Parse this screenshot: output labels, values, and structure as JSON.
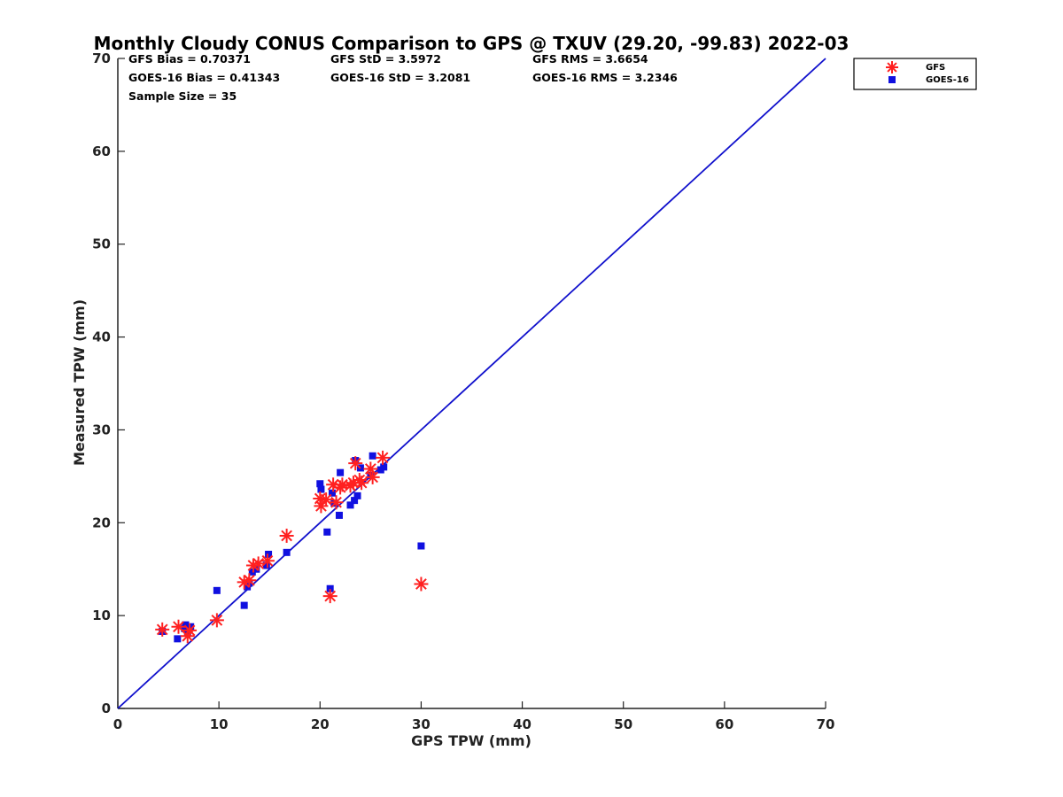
{
  "chart_data": {
    "type": "scatter",
    "title": "Monthly Cloudy CONUS Comparison to GPS @ TXUV (29.20, -99.83) 2022-03",
    "xlabel": "GPS TPW (mm)",
    "ylabel": "Measured TPW (mm)",
    "xlim": [
      0,
      70
    ],
    "ylim": [
      0,
      70
    ],
    "xticks": [
      "0",
      "10",
      "20",
      "30",
      "40",
      "50",
      "60",
      "70"
    ],
    "yticks": [
      "0",
      "10",
      "20",
      "30",
      "40",
      "50",
      "60",
      "70"
    ],
    "grid": false,
    "legend_position": "top-right outside",
    "stats": {
      "gfs_bias": "GFS Bias = 0.70371",
      "gfs_std": "GFS StD = 3.5972",
      "gfs_rms": "GFS RMS = 3.6654",
      "goes_bias": "GOES-16 Bias = 0.41343",
      "goes_std": "GOES-16 StD = 3.2081",
      "goes_rms": "GOES-16 RMS = 3.2346",
      "sample_size": "Sample Size = 35"
    },
    "reference_line": {
      "x": [
        0,
        70
      ],
      "y": [
        0,
        70
      ],
      "color": "#1010cc"
    },
    "series": [
      {
        "name": "GFS",
        "marker": "asterisk",
        "color": "#ff2020",
        "points": [
          [
            4.4,
            8.5
          ],
          [
            6.0,
            8.8
          ],
          [
            6.9,
            7.8
          ],
          [
            7.1,
            8.4
          ],
          [
            9.8,
            9.5
          ],
          [
            12.5,
            13.6
          ],
          [
            13.0,
            13.8
          ],
          [
            13.4,
            15.4
          ],
          [
            13.9,
            15.6
          ],
          [
            14.8,
            15.9
          ],
          [
            16.7,
            18.6
          ],
          [
            20.0,
            22.6
          ],
          [
            20.1,
            21.8
          ],
          [
            20.6,
            22.5
          ],
          [
            21.0,
            12.1
          ],
          [
            21.3,
            24.1
          ],
          [
            21.6,
            22.2
          ],
          [
            22.0,
            23.8
          ],
          [
            22.2,
            24.1
          ],
          [
            23.0,
            24.0
          ],
          [
            23.3,
            24.3
          ],
          [
            23.5,
            26.4
          ],
          [
            23.9,
            24.6
          ],
          [
            24.1,
            24.3
          ],
          [
            25.0,
            25.8
          ],
          [
            25.2,
            24.9
          ],
          [
            26.2,
            27.0
          ],
          [
            30.0,
            13.4
          ]
        ]
      },
      {
        "name": "GOES-16",
        "marker": "square",
        "color": "#1010e0",
        "points": [
          [
            4.4,
            8.3
          ],
          [
            5.9,
            7.5
          ],
          [
            6.6,
            8.6
          ],
          [
            6.7,
            9.0
          ],
          [
            6.9,
            8.2
          ],
          [
            7.2,
            8.8
          ],
          [
            9.8,
            12.7
          ],
          [
            12.5,
            11.1
          ],
          [
            12.8,
            13.1
          ],
          [
            13.0,
            13.5
          ],
          [
            13.3,
            14.7
          ],
          [
            13.7,
            15.0
          ],
          [
            14.7,
            15.4
          ],
          [
            14.9,
            16.6
          ],
          [
            16.7,
            16.8
          ],
          [
            20.0,
            24.2
          ],
          [
            20.1,
            23.6
          ],
          [
            20.7,
            19.0
          ],
          [
            21.0,
            12.9
          ],
          [
            21.2,
            23.2
          ],
          [
            21.4,
            22.1
          ],
          [
            21.9,
            20.8
          ],
          [
            22.0,
            25.4
          ],
          [
            23.0,
            21.9
          ],
          [
            23.4,
            22.4
          ],
          [
            23.5,
            26.7
          ],
          [
            23.7,
            22.9
          ],
          [
            24.0,
            25.9
          ],
          [
            25.0,
            25.1
          ],
          [
            25.2,
            27.2
          ],
          [
            26.0,
            25.7
          ],
          [
            26.3,
            26.0
          ],
          [
            30.0,
            17.5
          ]
        ]
      }
    ]
  }
}
